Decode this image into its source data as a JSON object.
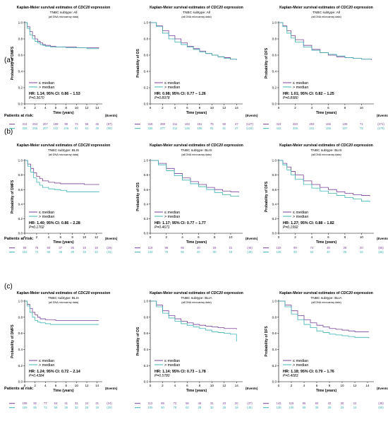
{
  "colors": {
    "low": "#7a3f96",
    "high": "#3cb3b3",
    "axis": "#000000"
  },
  "panels": [
    {
      "label": "(a)",
      "subtype": "TNBC subtype: All"
    },
    {
      "label": "(b)",
      "subtype": "TNBC subtype: BLIS"
    },
    {
      "label": "(c)",
      "subtype": "TNBC subtype: BLIA"
    }
  ],
  "common": {
    "title_prefix": "Kaplan-Meier survival estimates of ",
    "title_gene": "CDC20",
    "title_suffix": " expression",
    "note": "(all DNA microarray data)",
    "xlabel": "Time (years)",
    "legend_low": "≤ median",
    "legend_high": "> median",
    "patients_at_risk": "Patients at risk:",
    "events": "(Events)"
  },
  "chart_data": [
    {
      "type": "line",
      "row": 0,
      "col": 0,
      "ylabel": "Probability of DMFS",
      "xlim": [
        0,
        15
      ],
      "xticks": [
        0,
        2,
        4,
        6,
        8,
        10,
        12,
        14
      ],
      "ylim": [
        0,
        1
      ],
      "yticks": [
        0,
        0.2,
        0.4,
        0.6,
        0.8,
        1.0
      ],
      "hr": "HR: 1.14; 95% CI: 0.86 – 1.53",
      "p": "P=0.3670",
      "series": [
        {
          "name": "≤ median",
          "x": [
            0,
            0.5,
            1,
            1.5,
            2,
            2.5,
            3,
            3.5,
            4,
            5,
            6,
            8,
            10,
            12,
            14.3
          ],
          "y": [
            1,
            0.95,
            0.89,
            0.84,
            0.8,
            0.77,
            0.75,
            0.73,
            0.72,
            0.71,
            0.7,
            0.7,
            0.69,
            0.69,
            0.68
          ]
        },
        {
          "name": "> median",
          "x": [
            0,
            0.5,
            1,
            1.5,
            2,
            2.5,
            3,
            3.5,
            4,
            5,
            6,
            8,
            10,
            12,
            14.3
          ],
          "y": [
            1,
            0.93,
            0.85,
            0.8,
            0.77,
            0.75,
            0.73,
            0.72,
            0.71,
            0.7,
            0.7,
            0.69,
            0.69,
            0.68,
            0.68
          ]
        }
      ],
      "risk": {
        "low": [
          "314",
          "254",
          "207",
          "199",
          "99",
          "74",
          "58",
          "46",
          "(87)"
        ],
        "high": [
          "325",
          "256",
          "207",
          "142",
          "106",
          "81",
          "61",
          "48",
          "(99)"
        ]
      }
    },
    {
      "type": "line",
      "row": 0,
      "col": 1,
      "ylabel": "Probability of OS",
      "xlim": [
        0,
        15
      ],
      "xticks": [
        0,
        2,
        4,
        6,
        8,
        10,
        12,
        14
      ],
      "ylim": [
        0,
        1
      ],
      "yticks": [
        0,
        0.2,
        0.4,
        0.6,
        0.8,
        1.0
      ],
      "hr": "HR: 0.98; 95% CI: 0.77 – 1.26",
      "p": "P=0.8978",
      "series": [
        {
          "name": "≤ median",
          "x": [
            0,
            1,
            2,
            3,
            4,
            5,
            6,
            7,
            8,
            9,
            10,
            11,
            12,
            13,
            14
          ],
          "y": [
            1,
            0.96,
            0.9,
            0.84,
            0.8,
            0.75,
            0.71,
            0.68,
            0.65,
            0.62,
            0.6,
            0.58,
            0.57,
            0.55,
            0.54
          ]
        },
        {
          "name": "> median",
          "x": [
            0,
            1,
            2,
            3,
            4,
            5,
            6,
            7,
            8,
            9,
            10,
            11,
            12,
            13,
            14
          ],
          "y": [
            1,
            0.95,
            0.87,
            0.8,
            0.76,
            0.73,
            0.7,
            0.67,
            0.64,
            0.62,
            0.6,
            0.58,
            0.56,
            0.55,
            0.54
          ]
        }
      ],
      "risk": {
        "low": [
          "316",
          "289",
          "211",
          "183",
          "151",
          "75",
          "60",
          "47",
          "(127)"
        ],
        "high": [
          "326",
          "277",
          "211",
          "146",
          "106",
          "91",
          "61",
          "47",
          "(134)"
        ]
      }
    },
    {
      "type": "line",
      "row": 0,
      "col": 2,
      "ylabel": "Probability of DFS",
      "xlim": [
        0,
        11.5
      ],
      "xticks": [
        0,
        2,
        4,
        6,
        8,
        10
      ],
      "ylim": [
        0,
        1
      ],
      "yticks": [
        0,
        0.2,
        0.4,
        0.6,
        0.8,
        1.0
      ],
      "hr": "HR: 1.01; 95% CI: 0.82 – 1.25",
      "p": "P=0.8980",
      "series": [
        {
          "name": "≤ median",
          "x": [
            0,
            0.5,
            1,
            1.5,
            2,
            3,
            4,
            5,
            6,
            7,
            8,
            9,
            10,
            11.2
          ],
          "y": [
            1,
            0.96,
            0.9,
            0.84,
            0.79,
            0.72,
            0.67,
            0.63,
            0.6,
            0.58,
            0.57,
            0.56,
            0.55,
            0.54
          ]
        },
        {
          "name": "> median",
          "x": [
            0,
            0.5,
            1,
            1.5,
            2,
            3,
            4,
            5,
            6,
            7,
            8,
            9,
            10,
            11.2
          ],
          "y": [
            1,
            0.95,
            0.87,
            0.81,
            0.76,
            0.7,
            0.66,
            0.63,
            0.61,
            0.59,
            0.57,
            0.56,
            0.55,
            0.55
          ]
        }
      ],
      "risk": {
        "low": [
          "424",
          "320",
          "263",
          "166",
          "106",
          "71",
          "(171)"
        ],
        "high": [
          "442",
          "335",
          "241",
          "155",
          "107",
          "75",
          "(179)"
        ]
      }
    },
    {
      "type": "line",
      "row": 1,
      "col": 0,
      "ylabel": "Probability of DMFS",
      "xlim": [
        0,
        13
      ],
      "xticks": [
        0,
        2,
        4,
        6,
        8,
        10,
        12
      ],
      "ylim": [
        0,
        1
      ],
      "yticks": [
        0,
        0.2,
        0.4,
        0.6,
        0.8,
        1.0
      ],
      "hr": "HR: 1.40; 95% CI: 0.86 – 2.28",
      "p": "P=0.1702",
      "series": [
        {
          "name": "≤ median",
          "x": [
            0,
            0.5,
            1,
            1.5,
            2,
            2.5,
            3,
            4,
            5,
            6,
            8,
            10,
            12.5
          ],
          "y": [
            1,
            0.95,
            0.89,
            0.83,
            0.78,
            0.75,
            0.72,
            0.7,
            0.69,
            0.68,
            0.68,
            0.67,
            0.67
          ]
        },
        {
          "name": "> median",
          "x": [
            0,
            0.5,
            1,
            1.5,
            2,
            2.5,
            3,
            4,
            5,
            6,
            7,
            8,
            10,
            12.5
          ],
          "y": [
            1,
            0.92,
            0.84,
            0.76,
            0.7,
            0.66,
            0.63,
            0.61,
            0.6,
            0.59,
            0.57,
            0.57,
            0.57,
            0.57
          ]
        }
      ],
      "risk": {
        "low": [
          "99",
          "76",
          "60",
          "37",
          "26",
          "16",
          "18",
          "(29)"
        ],
        "high": [
          "103",
          "72",
          "56",
          "36",
          "29",
          "15",
          "12",
          "(41)"
        ]
      }
    },
    {
      "type": "line",
      "row": 1,
      "col": 1,
      "ylabel": "Probability of OS",
      "xlim": [
        0,
        11.5
      ],
      "xticks": [
        0,
        2,
        4,
        6,
        8,
        10
      ],
      "ylim": [
        0,
        1
      ],
      "yticks": [
        0,
        0.2,
        0.4,
        0.6,
        0.8,
        1.0
      ],
      "hr": "HR: 1.17; 95% CI: 0.77 – 1.77",
      "p": "P=0.4671",
      "series": [
        {
          "name": "≤ median",
          "x": [
            0,
            1,
            2,
            3,
            4,
            5,
            6,
            7,
            8,
            9,
            10,
            11
          ],
          "y": [
            1,
            0.96,
            0.89,
            0.82,
            0.76,
            0.71,
            0.67,
            0.63,
            0.6,
            0.58,
            0.57,
            0.56
          ]
        },
        {
          "name": "> median",
          "x": [
            0,
            1,
            2,
            3,
            4,
            5,
            6,
            7,
            8,
            9,
            10,
            11
          ],
          "y": [
            1,
            0.94,
            0.86,
            0.79,
            0.73,
            0.68,
            0.64,
            0.6,
            0.56,
            0.53,
            0.51,
            0.5
          ]
        }
      ],
      "risk": {
        "low": [
          "119",
          "98",
          "65",
          "40",
          "26",
          "21",
          "(46)"
        ],
        "high": [
          "103",
          "79",
          "55",
          "40",
          "30",
          "19",
          "(49)"
        ]
      }
    },
    {
      "type": "line",
      "row": 1,
      "col": 2,
      "ylabel": "Probability of DFS",
      "xlim": [
        0,
        11.5
      ],
      "xticks": [
        0,
        2,
        4,
        6,
        8,
        10
      ],
      "ylim": [
        0,
        1
      ],
      "yticks": [
        0,
        0.2,
        0.4,
        0.6,
        0.8,
        1.0
      ],
      "hr": "HR: 1.27; 95% CI: 0.88 – 1.82",
      "p": "P=0.1992",
      "series": [
        {
          "name": "≤ median",
          "x": [
            0,
            0.5,
            1,
            1.5,
            2,
            3,
            4,
            5,
            6,
            7,
            8,
            9,
            10,
            11
          ],
          "y": [
            1,
            0.96,
            0.91,
            0.85,
            0.8,
            0.72,
            0.67,
            0.63,
            0.6,
            0.57,
            0.55,
            0.53,
            0.52,
            0.51
          ]
        },
        {
          "name": "> median",
          "x": [
            0,
            0.5,
            1,
            1.5,
            2,
            3,
            4,
            5,
            6,
            7,
            8,
            9,
            10,
            11
          ],
          "y": [
            1,
            0.94,
            0.87,
            0.8,
            0.74,
            0.67,
            0.62,
            0.58,
            0.55,
            0.52,
            0.49,
            0.47,
            0.44,
            0.43
          ]
        }
      ],
      "risk": {
        "low": [
          "133",
          "90",
          "74",
          "48",
          "29",
          "20",
          "(55)"
        ],
        "high": [
          "136",
          "90",
          "62",
          "40",
          "25",
          "16",
          "(65)"
        ]
      }
    },
    {
      "type": "line",
      "row": 2,
      "col": 0,
      "ylabel": "Probability of DMFS",
      "xlim": [
        0,
        15
      ],
      "xticks": [
        0,
        2,
        4,
        6,
        8,
        10,
        12,
        14
      ],
      "ylim": [
        0,
        1
      ],
      "yticks": [
        0,
        0.2,
        0.4,
        0.6,
        0.8,
        1.0
      ],
      "hr": "HR: 1.24; 95% CI: 0.72 – 2.14",
      "p": "P=0.4384",
      "series": [
        {
          "name": "≤ median",
          "x": [
            0,
            0.5,
            1,
            1.5,
            2,
            2.5,
            3,
            4,
            5,
            6,
            8,
            10,
            12,
            14.3
          ],
          "y": [
            1,
            0.96,
            0.91,
            0.86,
            0.83,
            0.8,
            0.78,
            0.77,
            0.77,
            0.76,
            0.76,
            0.76,
            0.76,
            0.76
          ]
        },
        {
          "name": "> median",
          "x": [
            0,
            0.5,
            1,
            1.5,
            2,
            2.5,
            3,
            4,
            5,
            6,
            8,
            10,
            12,
            14.3
          ],
          "y": [
            1,
            0.94,
            0.86,
            0.8,
            0.76,
            0.74,
            0.73,
            0.72,
            0.71,
            0.71,
            0.71,
            0.71,
            0.71,
            0.71
          ]
        }
      ],
      "risk": {
        "low": [
          "108",
          "92",
          "77",
          "54",
          "41",
          "31",
          "24",
          "21",
          "(24)"
        ],
        "high": [
          "109",
          "85",
          "72",
          "58",
          "39",
          "32",
          "26",
          "19",
          "(29)"
        ]
      }
    },
    {
      "type": "line",
      "row": 2,
      "col": 1,
      "ylabel": "Probability of OS",
      "xlim": [
        0,
        15
      ],
      "xticks": [
        0,
        2,
        4,
        6,
        8,
        10,
        12,
        14
      ],
      "ylim": [
        0,
        1
      ],
      "yticks": [
        0,
        0.2,
        0.4,
        0.6,
        0.8,
        1.0
      ],
      "hr": "HR: 1.14; 95% CI: 0.73 – 1.78",
      "p": "P=0.5780",
      "series": [
        {
          "name": "≤ median",
          "x": [
            0,
            1,
            2,
            3,
            4,
            5,
            6,
            7,
            8,
            9,
            10,
            11,
            12,
            13,
            14
          ],
          "y": [
            1,
            0.95,
            0.88,
            0.82,
            0.78,
            0.75,
            0.73,
            0.71,
            0.7,
            0.69,
            0.68,
            0.67,
            0.66,
            0.66,
            0.65
          ]
        },
        {
          "name": "> median",
          "x": [
            0,
            1,
            2,
            3,
            4,
            5,
            6,
            7,
            8,
            9,
            10,
            11,
            12,
            13,
            14
          ],
          "y": [
            1,
            0.93,
            0.85,
            0.79,
            0.75,
            0.72,
            0.7,
            0.68,
            0.66,
            0.64,
            0.62,
            0.61,
            0.6,
            0.59,
            0.5
          ]
        }
      ],
      "risk": {
        "low": [
          "112",
          "98",
          "72",
          "56",
          "46",
          "31",
          "23",
          "20",
          "(37)"
        ],
        "high": [
          "109",
          "90",
          "79",
          "62",
          "39",
          "32",
          "28",
          "19",
          "(45)"
        ]
      }
    },
    {
      "type": "line",
      "row": 2,
      "col": 2,
      "ylabel": "Probability of DFS",
      "xlim": [
        0,
        15
      ],
      "xticks": [
        0,
        2,
        4,
        6,
        8,
        10,
        12,
        14
      ],
      "ylim": [
        0,
        1
      ],
      "yticks": [
        0,
        0.2,
        0.4,
        0.6,
        0.8,
        1.0
      ],
      "hr": "HR: 1.18; 95% CI: 0.79 – 1.76",
      "p": "P=0.4083",
      "series": [
        {
          "name": "≤ median",
          "x": [
            0,
            1,
            2,
            3,
            4,
            5,
            6,
            7,
            8,
            9,
            10,
            11,
            12,
            13,
            14.2
          ],
          "y": [
            1,
            0.95,
            0.88,
            0.82,
            0.77,
            0.73,
            0.7,
            0.68,
            0.66,
            0.65,
            0.64,
            0.63,
            0.62,
            0.62,
            0.62
          ]
        },
        {
          "name": "> median",
          "x": [
            0,
            1,
            2,
            3,
            4,
            5,
            6,
            7,
            8,
            9,
            10,
            11,
            12,
            13,
            14.2
          ],
          "y": [
            1,
            0.93,
            0.84,
            0.77,
            0.71,
            0.67,
            0.63,
            0.61,
            0.59,
            0.58,
            0.57,
            0.56,
            0.55,
            0.55,
            0.54
          ]
        }
      ],
      "risk": {
        "low": [
          "143",
          "118",
          "85",
          "60",
          "42",
          "30",
          "22",
          "(48)"
        ],
        "high": [
          "139",
          "106",
          "68",
          "39",
          "39",
          "29",
          "24",
          "(59)"
        ]
      }
    }
  ]
}
